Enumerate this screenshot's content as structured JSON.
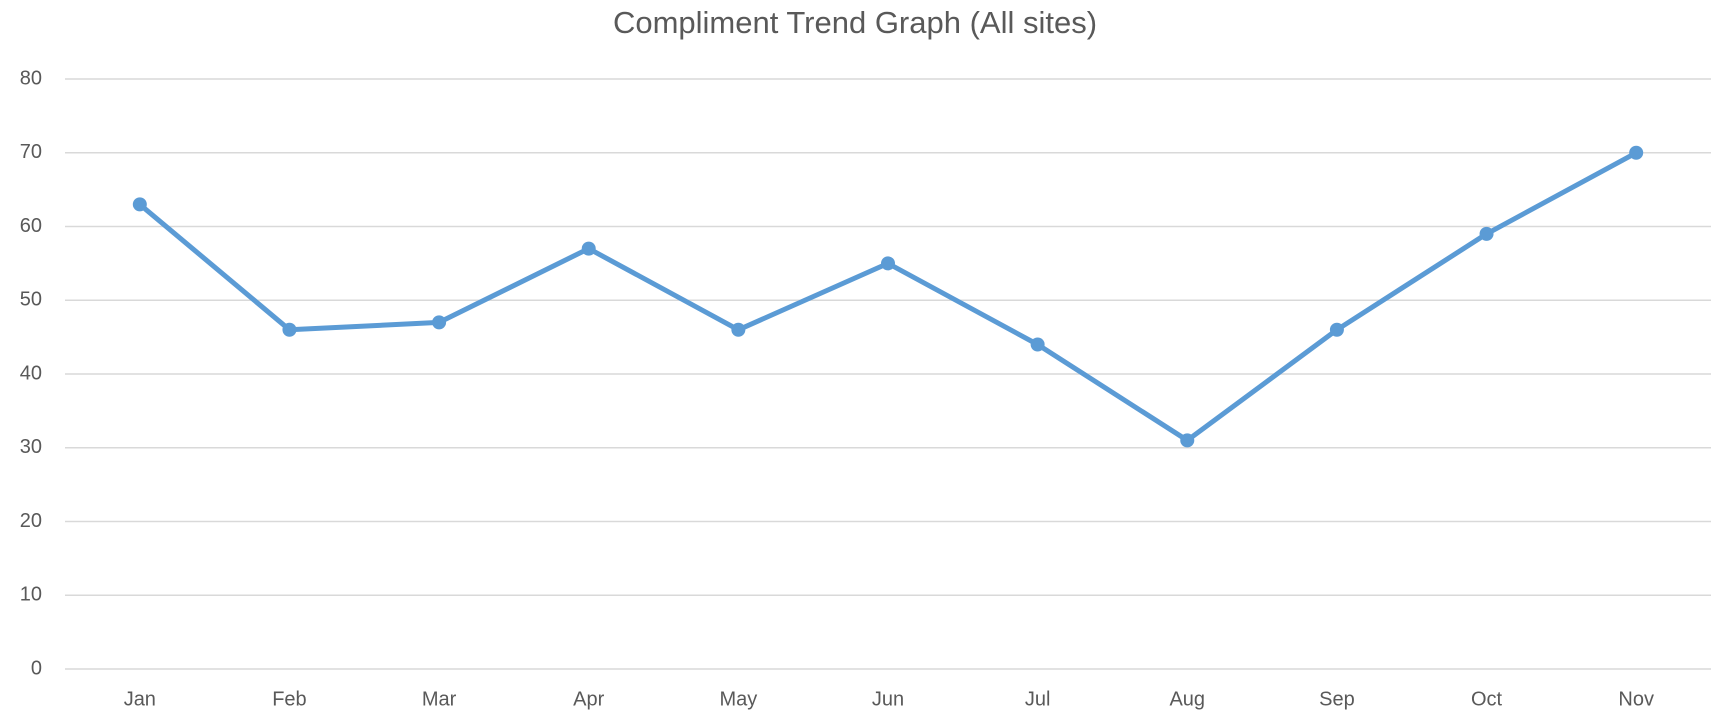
{
  "chart_data": {
    "type": "line",
    "title": "Compliment Trend Graph (All sites)",
    "categories": [
      "Jan",
      "Feb",
      "Mar",
      "Apr",
      "May",
      "Jun",
      "Jul",
      "Aug",
      "Sep",
      "Oct",
      "Nov"
    ],
    "values": [
      63,
      46,
      47,
      57,
      46,
      55,
      44,
      31,
      46,
      59,
      70
    ],
    "color": "#5b9bd5",
    "ylim": [
      0,
      80
    ],
    "yticks": [
      0,
      10,
      20,
      30,
      40,
      50,
      60,
      70,
      80
    ],
    "grid": true
  }
}
